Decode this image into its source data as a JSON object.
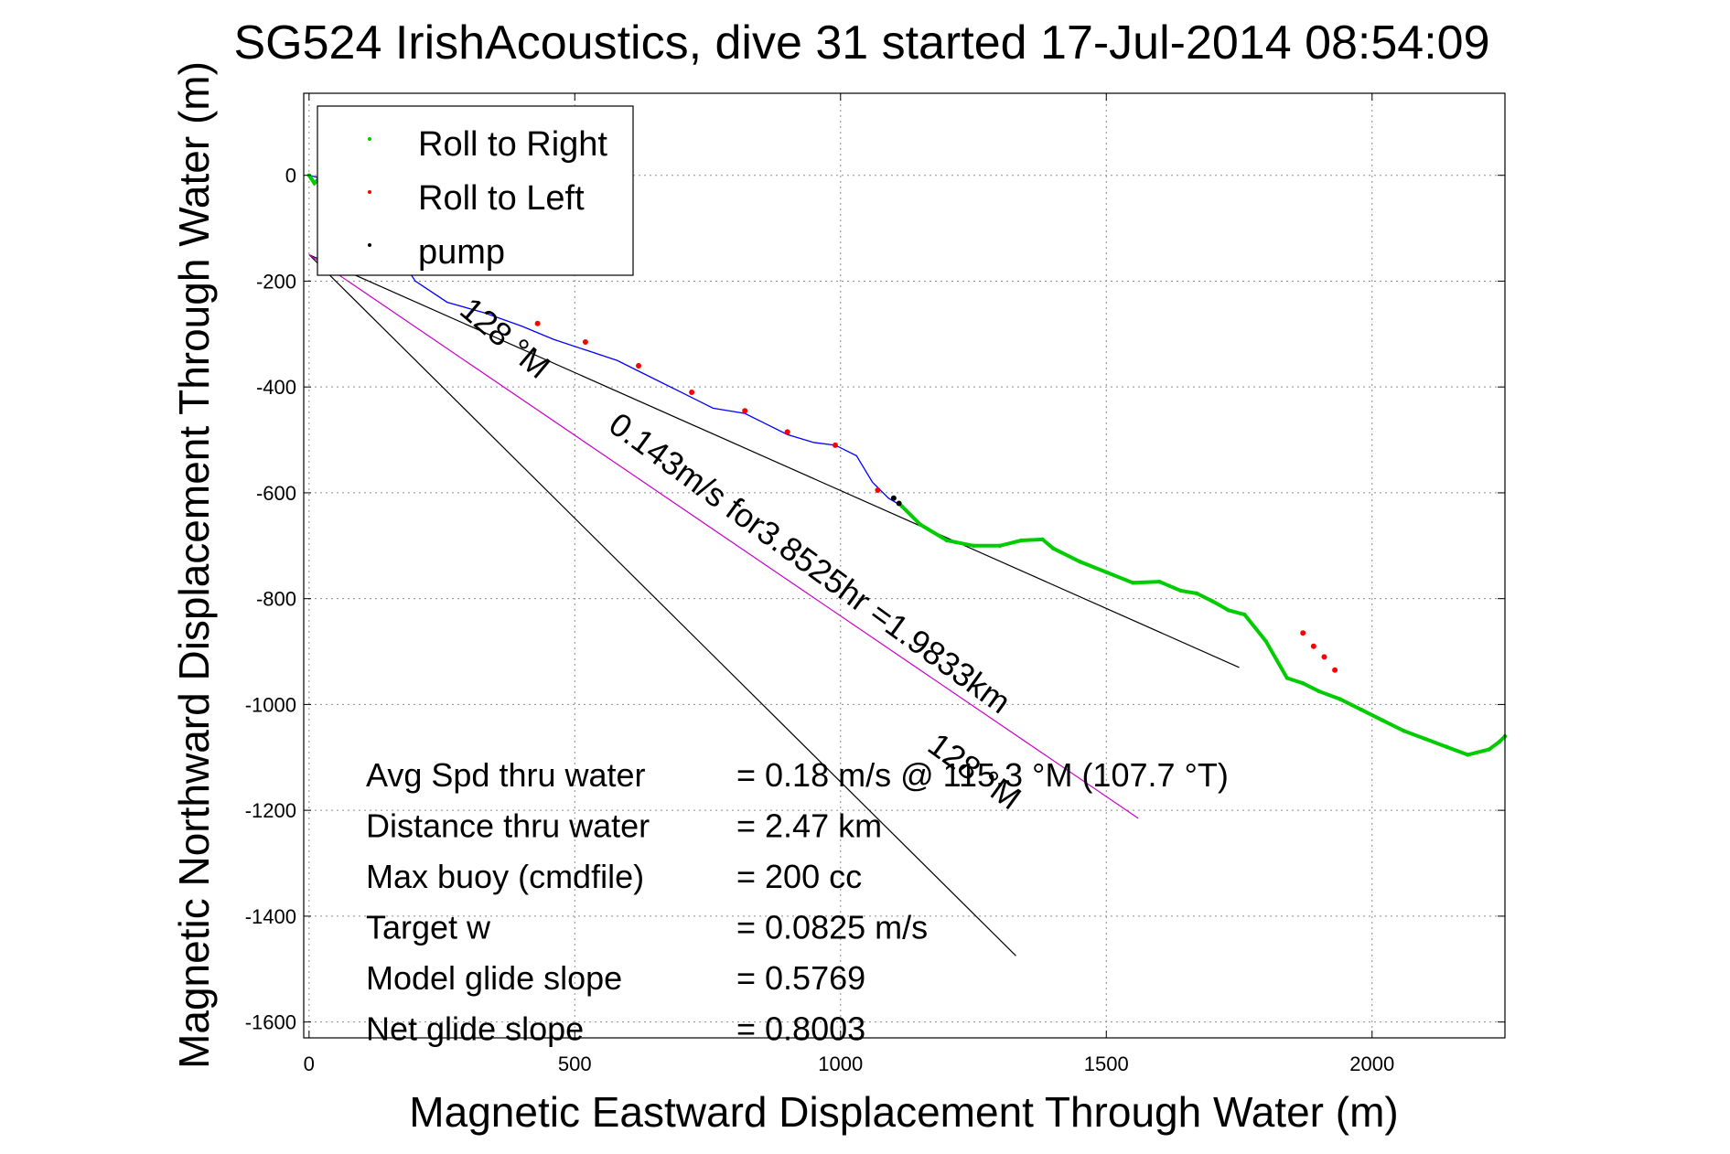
{
  "chart_data": {
    "type": "line",
    "title": "SG524 IrishAcoustics, dive 31 started 17-Jul-2014 08:54:09",
    "xlabel": "Magnetic Eastward Displacement Through Water (m)",
    "ylabel": "Magnetic Northward Displacement Through Water (m)",
    "xlim": [
      -10,
      2250
    ],
    "ylim": [
      -1630,
      155
    ],
    "xticks": [
      0,
      500,
      1000,
      1500,
      2000
    ],
    "yticks": [
      0,
      -200,
      -400,
      -600,
      -800,
      -1000,
      -1200,
      -1400,
      -1600
    ],
    "xtick_labels": [
      "0",
      "500",
      "1000",
      "1500",
      "2000"
    ],
    "ytick_labels": [
      "0",
      "-200",
      "-400",
      "-600",
      "-800",
      "-1000",
      "-1200",
      "-1400",
      "-1600"
    ],
    "grid": true,
    "legend_position": "top-left",
    "series": [
      {
        "name": "Roll to Right",
        "color": "#00cc00",
        "marker": "dot",
        "x": [
          0,
          10,
          20,
          1115,
          1150,
          1200,
          1250,
          1300,
          1340,
          1380,
          1400,
          1450,
          1500,
          1550,
          1600,
          1640,
          1670,
          1700,
          1730,
          1760,
          1800,
          1840,
          1870,
          1900,
          1940,
          1980,
          2020,
          2060,
          2100,
          2140,
          2180,
          2220,
          2240,
          2250
        ],
        "y": [
          0,
          -15,
          -5,
          -625,
          -660,
          -690,
          -700,
          -700,
          -690,
          -688,
          -705,
          -730,
          -750,
          -770,
          -768,
          -785,
          -790,
          -805,
          -822,
          -830,
          -880,
          -950,
          -960,
          -975,
          -990,
          -1010,
          -1030,
          -1050,
          -1065,
          -1080,
          -1095,
          -1085,
          -1070,
          -1060
        ]
      },
      {
        "name": "Roll to Left",
        "color": "#ff0000",
        "marker": "dot",
        "x": [
          430,
          520,
          620,
          720,
          820,
          900,
          990,
          1070,
          1870,
          1890,
          1910,
          1930
        ],
        "y": [
          -280,
          -315,
          -360,
          -410,
          -445,
          -485,
          -510,
          -595,
          -865,
          -890,
          -910,
          -935
        ]
      },
      {
        "name": "pump",
        "color": "#000000",
        "marker": "dot",
        "x": [
          1100,
          1110
        ],
        "y": [
          -610,
          -620
        ]
      },
      {
        "name": "",
        "color": "#0000ff",
        "marker": "none",
        "x": [
          0,
          40,
          80,
          120,
          160,
          200,
          260,
          330,
          400,
          460,
          520,
          580,
          640,
          700,
          760,
          820,
          860,
          900,
          950,
          990,
          1030,
          1060,
          1090,
          1115
        ],
        "y": [
          0,
          -10,
          -40,
          -90,
          -140,
          -200,
          -240,
          -260,
          -285,
          -310,
          -330,
          -350,
          -380,
          -410,
          -440,
          -450,
          -470,
          -490,
          -505,
          -510,
          -530,
          -580,
          -610,
          -625
        ]
      }
    ],
    "reference_lines": [
      {
        "color": "#000000",
        "x": [
          0,
          1750
        ],
        "y": [
          -150,
          -930
        ]
      },
      {
        "color": "#000000",
        "x": [
          0,
          1330
        ],
        "y": [
          -150,
          -1475
        ]
      },
      {
        "color": "#cc00cc",
        "x": [
          0,
          1560
        ],
        "y": [
          -150,
          -1215
        ]
      }
    ],
    "annotations": [
      {
        "text": "128 °M",
        "x": 280,
        "y": -260,
        "rotation": 40
      },
      {
        "text": "0.143m/s for3.8525hr =1.9833km",
        "x": 560,
        "y": -480,
        "rotation": 36
      },
      {
        "text": "128 °M",
        "x": 1160,
        "y": -1085,
        "rotation": 36
      }
    ],
    "stats": [
      {
        "label": "Avg Spd thru water",
        "value": "=  0.18 m/s @ 115.3 °M (107.7 °T)"
      },
      {
        "label": "Distance thru water",
        "value": "=  2.47 km"
      },
      {
        "label": "Max buoy (cmdfile)",
        "value": "= 200 cc"
      },
      {
        "label": "Target w",
        "value": "= 0.0825 m/s"
      },
      {
        "label": "Model glide slope",
        "value": "= 0.5769"
      },
      {
        "label": "Net glide slope",
        "value": "= 0.8003"
      }
    ]
  }
}
